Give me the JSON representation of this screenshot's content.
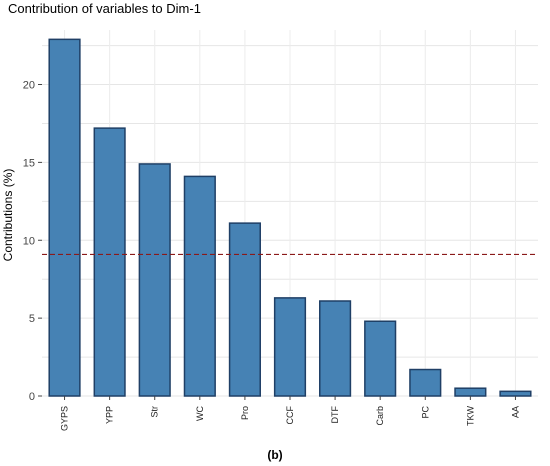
{
  "chart_data": {
    "type": "bar",
    "title": "Contribution of variables to Dim-1",
    "xlabel": "",
    "ylabel": "Contributions (%)",
    "categories": [
      "GYPS",
      "YPP",
      "Str",
      "WC",
      "Pro",
      "CCF",
      "DTF",
      "Carb",
      "PC",
      "TKW",
      "AA"
    ],
    "values": [
      22.9,
      17.2,
      14.9,
      14.1,
      11.1,
      6.3,
      6.1,
      4.8,
      1.7,
      0.5,
      0.3
    ],
    "ylim": [
      0,
      23.5
    ],
    "yticks": [
      0,
      5,
      10,
      15,
      20
    ],
    "reference_line": 9.09,
    "grid": true,
    "bar_color": "#4682B4",
    "bar_edge_color": "#1F3F66",
    "reference_line_color": "#8B1A1A"
  },
  "caption": "(b)"
}
